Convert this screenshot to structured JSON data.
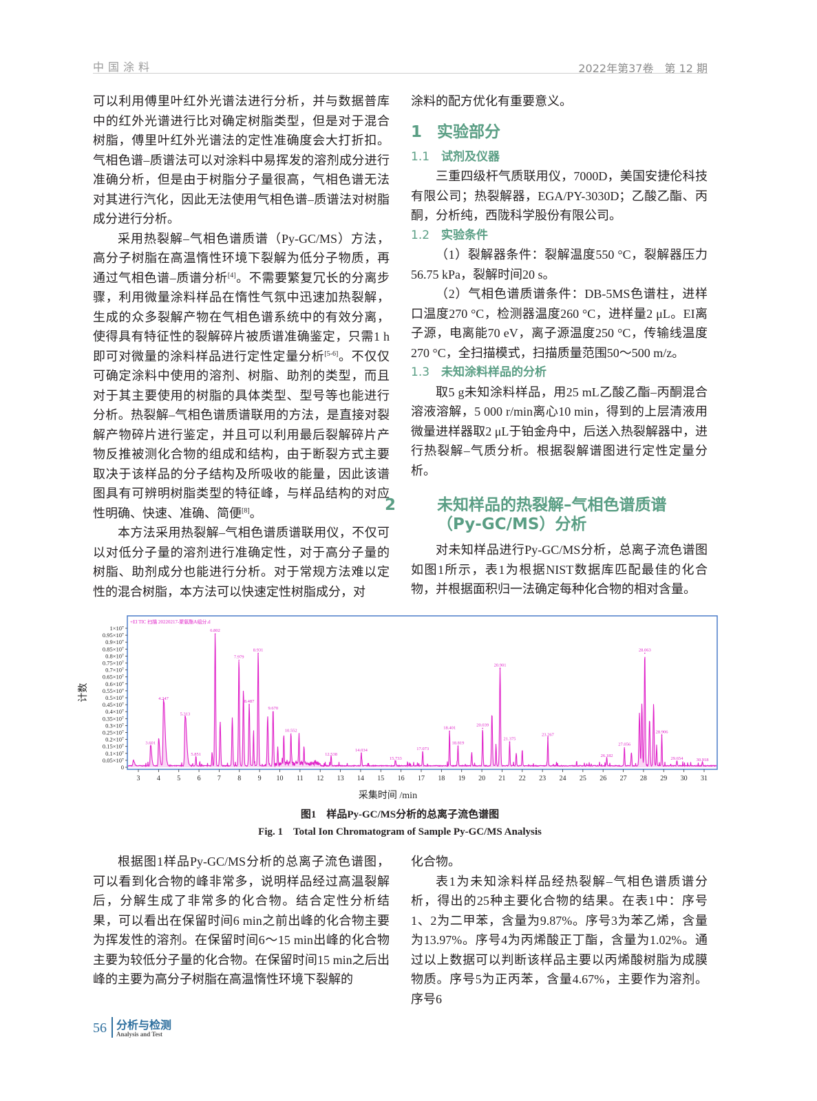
{
  "header": {
    "journal": "中国涂料",
    "issue": "2022年第37卷　第 12 期"
  },
  "left_top": [
    {
      "indent": false,
      "segs": [
        {
          "t": "可以利用傅里叶红外光谱法进行分析，并与数据普库中的红外光谱进行比对确定树脂类型，但是对于混合树脂，傅里叶红外光谱法的定性准确度会大打折扣。气相色谱–质谱法可以对涂料中易挥发的溶剂成分进行准确分析，但是由于树脂分子量很高，气相色谱无法对其进行汽化，因此无法使用气相色谱–质谱法对树脂成分进行分析。"
        }
      ]
    },
    {
      "indent": true,
      "segs": [
        {
          "t": "采用热裂解–气相色谱质谱（Py-GC/MS）方法，高分子树脂在高温惰性环境下裂解为低分子物质，再通过气相色谱–质谱分析"
        },
        {
          "sup": "[4]"
        },
        {
          "t": "。不需要繁复冗长的分离步骤，利用微量涂料样品在惰性气氛中迅速加热裂解，生成的众多裂解产物在气相色谱系统中的有效分离，使得具有特征性的裂解碎片被质谱准确鉴定，只需1 h即可对微量的涂料样品进行定性定量分析"
        },
        {
          "sup": "[5-6]"
        },
        {
          "t": "。不仅仅可确定涂料中使用的溶剂、树脂、助剂的类型，而且对于其主要使用的树脂的具体类型、型号等也能进行分析。热裂解–气相色谱质谱联用的方法，是直接对裂解产物碎片进行鉴定，并且可以利用最后裂解碎片产物反推被测化合物的组成和结构，由于断裂方式主要取决于该样品的分子结构及所吸收的能量，因此该谱图具有可辨明树脂类型的特征峰，与样品结构的对应性明确、快速、准确、简便"
        },
        {
          "sup": "[8]"
        },
        {
          "t": "。"
        }
      ]
    },
    {
      "indent": true,
      "segs": [
        {
          "t": "本方法采用热裂解–气相色谱质谱联用仪，不仅可以对低分子量的溶剂进行准确定性，对于高分子量的树脂、助剂成分也能进行分析。对于常规方法难以定性的混合树脂，本方法可以快速定性树脂成分，对"
        }
      ]
    }
  ],
  "right_top": {
    "continuation": "涂料的配方优化有重要意义。",
    "sec1": {
      "num": "1",
      "title": "实验部分"
    },
    "sec1_1": {
      "num": "1.1",
      "title": "试剂及仪器"
    },
    "p1_1": "三重四级杆气质联用仪，7000D，美国安捷伦科技有限公司；热裂解器，EGA/PY-3030D；乙酸乙酯、丙酮，分析纯，西陇科学股份有限公司。",
    "sec1_2": {
      "num": "1.2",
      "title": "实验条件"
    },
    "p1_2a": "（1）裂解器条件：裂解温度550 °C，裂解器压力56.75 kPa，裂解时间20 s。",
    "p1_2b": "（2）气相色谱质谱条件：DB-5MS色谱柱，进样口温度270 °C，检测器温度260 °C，进样量2 μL。EI离子源，电离能70 eV，离子源温度250 °C，传输线温度270 °C，全扫描模式，扫描质量范围50～500 m/z。",
    "sec1_3": {
      "num": "1.3",
      "title": "未知涂料样品的分析"
    },
    "p1_3": "取5 g未知涂料样品，用25 mL乙酸乙酯–丙酮混合溶液溶解，5 000 r/min离心10 min，得到的上层清液用微量进样器取2 μL于铂金舟中，后送入热裂解器中，进行热裂解–气质分析。根据裂解谱图进行定性定量分析。",
    "sec2": {
      "num": "2",
      "title": "未知样品的热裂解–气相色谱质谱（Py-GC/MS）分析"
    },
    "p2": "对未知样品进行Py-GC/MS分析，总离子流色谱图如图1所示，表1为根据NIST数据库匹配最佳的化合物，并根据面积归一法确定每种化合物的相对含量。"
  },
  "chart_data": {
    "type": "line",
    "title": "+EI TIC 扫描 20220217-聚氨酯A组分.d",
    "xlabel": "采集时间 /min",
    "ylabel": "计数",
    "xlim": [
      2.6,
      31.6
    ],
    "ylim": [
      0,
      1.05
    ],
    "x_ticks": [
      "3",
      "4",
      "5",
      "6",
      "7",
      "8",
      "9",
      "10",
      "11",
      "12",
      "13",
      "14",
      "15",
      "16",
      "17",
      "18",
      "19",
      "20",
      "21",
      "22",
      "23",
      "24",
      "25",
      "26",
      "27",
      "28",
      "29",
      "30",
      "31"
    ],
    "y_ticks": [
      "0",
      "0.05×10⁷",
      "0.1×10⁷",
      "0.15×10⁷",
      "0.2×10⁷",
      "0.25×10⁷",
      "0.3×10⁷",
      "0.35×10⁷",
      "0.4×10⁷",
      "0.45×10⁷",
      "0.5×10⁷",
      "0.55×10⁷",
      "0.6×10⁷",
      "0.65×10⁷",
      "0.7×10⁷",
      "0.75×10⁷",
      "0.8×10⁷",
      "0.85×10⁷",
      "0.9×10⁷",
      "0.95×10⁷",
      "1×10⁷"
    ],
    "line_color": "#e020c8",
    "frame_color": "#4a7bc8",
    "labeled_peaks": [
      {
        "x": 3.601,
        "y": 0.15,
        "label": "3.601"
      },
      {
        "x": 4.247,
        "y": 0.47,
        "label": "4.247"
      },
      {
        "x": 5.313,
        "y": 0.36,
        "label": "5.313"
      },
      {
        "x": 5.851,
        "y": 0.07,
        "label": "5.851"
      },
      {
        "x": 6.802,
        "y": 0.96,
        "label": "6.802"
      },
      {
        "x": 7.979,
        "y": 0.77,
        "label": "7.979"
      },
      {
        "x": 8.487,
        "y": 0.45,
        "label": "8.487"
      },
      {
        "x": 8.931,
        "y": 0.82,
        "label": "8.931"
      },
      {
        "x": 9.67,
        "y": 0.4,
        "label": "9.670"
      },
      {
        "x": 10.552,
        "y": 0.24,
        "label": "10.552"
      },
      {
        "x": 12.538,
        "y": 0.07,
        "label": "12.538"
      },
      {
        "x": 14.034,
        "y": 0.1,
        "label": "14.034"
      },
      {
        "x": 15.733,
        "y": 0.04,
        "label": "15.733"
      },
      {
        "x": 17.073,
        "y": 0.11,
        "label": "17.073"
      },
      {
        "x": 18.401,
        "y": 0.26,
        "label": "18.401"
      },
      {
        "x": 18.819,
        "y": 0.15,
        "label": "18.819"
      },
      {
        "x": 20.039,
        "y": 0.28,
        "label": "20.039"
      },
      {
        "x": 20.901,
        "y": 0.71,
        "label": "20.901"
      },
      {
        "x": 21.375,
        "y": 0.18,
        "label": "21.375"
      },
      {
        "x": 23.267,
        "y": 0.21,
        "label": "23.267"
      },
      {
        "x": 26.182,
        "y": 0.06,
        "label": "26.182"
      },
      {
        "x": 27.056,
        "y": 0.14,
        "label": "27.056"
      },
      {
        "x": 28.063,
        "y": 0.82,
        "label": "28.063"
      },
      {
        "x": 28.906,
        "y": 0.23,
        "label": "28.906"
      },
      {
        "x": 29.654,
        "y": 0.04,
        "label": "29.654"
      },
      {
        "x": 30.918,
        "y": 0.03,
        "label": "30.918"
      }
    ],
    "other_peaks": [
      {
        "x": 2.75,
        "y": 0.04
      },
      {
        "x": 4.0,
        "y": 0.2
      },
      {
        "x": 6.65,
        "y": 0.1
      },
      {
        "x": 7.05,
        "y": 0.32
      },
      {
        "x": 7.65,
        "y": 0.35
      },
      {
        "x": 8.2,
        "y": 0.55
      },
      {
        "x": 8.7,
        "y": 0.25
      },
      {
        "x": 9.4,
        "y": 0.36
      },
      {
        "x": 9.9,
        "y": 0.14
      },
      {
        "x": 10.2,
        "y": 0.22
      },
      {
        "x": 10.95,
        "y": 0.22
      },
      {
        "x": 11.2,
        "y": 0.12
      },
      {
        "x": 19.5,
        "y": 0.1
      },
      {
        "x": 20.5,
        "y": 0.38
      },
      {
        "x": 20.7,
        "y": 0.16
      },
      {
        "x": 21.7,
        "y": 0.09
      },
      {
        "x": 22.0,
        "y": 0.12
      },
      {
        "x": 27.4,
        "y": 0.1
      },
      {
        "x": 27.8,
        "y": 0.38
      },
      {
        "x": 27.92,
        "y": 0.45
      },
      {
        "x": 28.3,
        "y": 0.34
      },
      {
        "x": 28.5,
        "y": 0.45
      },
      {
        "x": 28.65,
        "y": 0.15
      }
    ]
  },
  "figure": {
    "caption_cn": "图1　样品Py-GC/MS分析的总离子流色谱图",
    "caption_en": "Fig. 1　Total Ion Chromatogram of Sample Py-GC/MS Analysis"
  },
  "left_bottom": "根据图1样品Py-GC/MS分析的总离子流色谱图，可以看到化合物的峰非常多，说明样品经过高温裂解后，分解生成了非常多的化合物。结合定性分析结果，可以看出在保留时间6 min之前出峰的化合物主要为挥发性的溶剂。在保留时间6～15 min出峰的化合物主要为较低分子量的化合物。在保留时间15 min之后出峰的主要为高分子树脂在高温惰性环境下裂解的",
  "right_bottom": {
    "continuation": "化合物。",
    "p": "表1为未知涂料样品经热裂解–气相色谱质谱分析，得出的25种主要化合物的结果。在表1中：序号1、2为二甲苯，含量为9.87%。序号3为苯乙烯，含量为13.97%。序号4为丙烯酸正丁酯，含量为1.02%。通过以上数据可以判断该样品主要以丙烯酸树脂为成膜物质。序号5为正丙苯，含量4.67%，主要作为溶剂。序号6"
  },
  "footer": {
    "page": "56",
    "section_cn": "分析与检测",
    "section_en": "Analysis and Test"
  },
  "colors": {
    "heading": "#5a9e84",
    "footer": "#2e6f9e"
  }
}
